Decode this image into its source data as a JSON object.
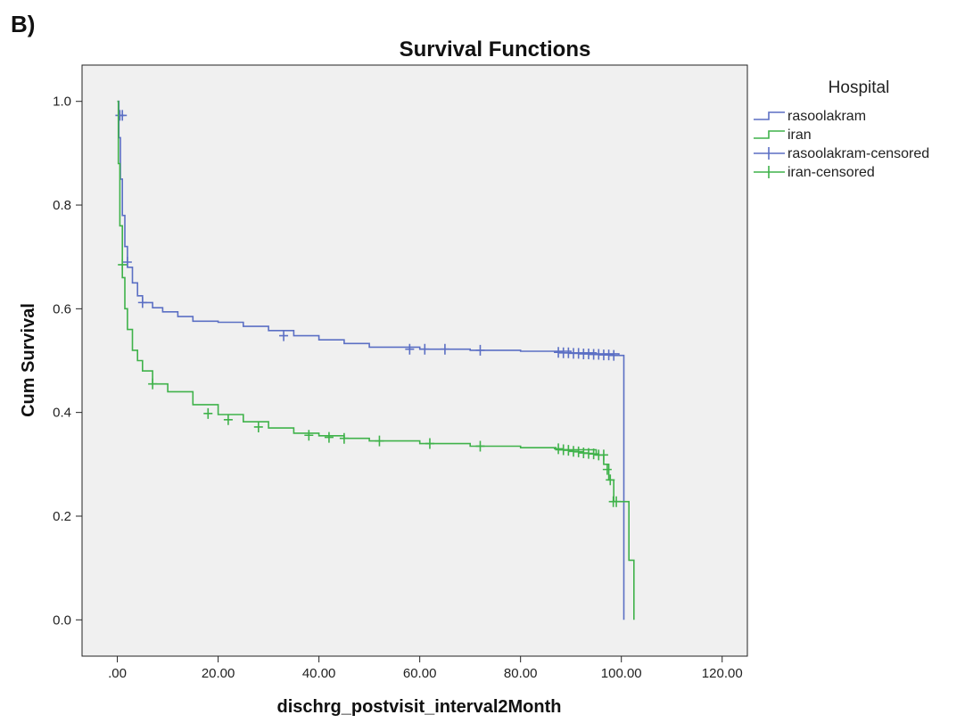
{
  "panel_label": "B)",
  "chart_data": {
    "type": "line",
    "title": "Survival Functions",
    "xlabel": "dischrg_postvisit_interval2Month",
    "ylabel": "Cum Survival",
    "xlim": [
      -7,
      125
    ],
    "ylim": [
      -0.07,
      1.07
    ],
    "xticks": [
      0,
      20,
      40,
      60,
      80,
      100,
      120
    ],
    "xtick_labels": [
      ".00",
      "20.00",
      "40.00",
      "60.00",
      "80.00",
      "100.00",
      "120.00"
    ],
    "yticks": [
      0,
      0.2,
      0.4,
      0.6,
      0.8,
      1.0
    ],
    "ytick_labels": [
      "0.0",
      "0.2",
      "0.4",
      "0.6",
      "0.8",
      "1.0"
    ],
    "grid": false,
    "legend_title": "Hospital",
    "legend_position": "right",
    "legend": [
      {
        "label": "rasoolakram",
        "series": 0,
        "kind": "line"
      },
      {
        "label": "iran",
        "series": 1,
        "kind": "line"
      },
      {
        "label": "rasoolakram-censored",
        "series": 0,
        "kind": "censor"
      },
      {
        "label": "iran-censored",
        "series": 1,
        "kind": "censor"
      }
    ],
    "series": [
      {
        "name": "rasoolakram",
        "color": "#5b6fc4",
        "step": true,
        "x": [
          0,
          0.3,
          0.6,
          1,
          1.5,
          2,
          3,
          4,
          5,
          7,
          9,
          12,
          15,
          20,
          25,
          30,
          35,
          40,
          45,
          50,
          60,
          70,
          80,
          90,
          95,
          99.5,
          100.5
        ],
        "y": [
          1.0,
          0.93,
          0.85,
          0.78,
          0.72,
          0.68,
          0.65,
          0.625,
          0.612,
          0.602,
          0.594,
          0.585,
          0.576,
          0.574,
          0.566,
          0.558,
          0.548,
          0.54,
          0.533,
          0.526,
          0.522,
          0.52,
          0.518,
          0.515,
          0.513,
          0.51,
          0.0
        ],
        "censored_x": [
          0.5,
          1,
          2,
          5,
          33,
          58,
          61,
          65,
          72,
          87.5,
          88.5,
          89.5,
          90.5,
          91.5,
          92.5,
          93.5,
          94.5,
          95.5,
          96.5,
          97.5,
          98.5
        ],
        "censored_y": [
          0.973,
          0.973,
          0.69,
          0.612,
          0.548,
          0.522,
          0.522,
          0.522,
          0.52,
          0.516,
          0.515,
          0.515,
          0.514,
          0.514,
          0.513,
          0.513,
          0.512,
          0.512,
          0.511,
          0.511,
          0.51
        ]
      },
      {
        "name": "iran",
        "color": "#3fb24a",
        "step": true,
        "x": [
          0,
          0.2,
          0.5,
          1,
          1.5,
          2,
          3,
          4,
          5,
          7,
          10,
          15,
          20,
          25,
          30,
          35,
          40,
          45,
          50,
          60,
          70,
          80,
          87,
          95,
          96.5,
          97.5,
          98.5,
          100,
          101.5,
          102.5
        ],
        "y": [
          1.0,
          0.88,
          0.76,
          0.66,
          0.6,
          0.56,
          0.52,
          0.5,
          0.48,
          0.455,
          0.44,
          0.415,
          0.396,
          0.382,
          0.37,
          0.36,
          0.355,
          0.35,
          0.345,
          0.34,
          0.335,
          0.332,
          0.328,
          0.318,
          0.3,
          0.27,
          0.228,
          0.228,
          0.115,
          0.0
        ],
        "censored_x": [
          1,
          7,
          18,
          22,
          28,
          38,
          42,
          45,
          52,
          62,
          72,
          87.5,
          88.5,
          89.5,
          90.5,
          91.5,
          92.5,
          93.5,
          94.5,
          95.5,
          96.5,
          97.2,
          97.8,
          98.4,
          99
        ],
        "censored_y": [
          0.685,
          0.455,
          0.398,
          0.386,
          0.372,
          0.356,
          0.352,
          0.35,
          0.345,
          0.34,
          0.335,
          0.33,
          0.328,
          0.327,
          0.325,
          0.324,
          0.322,
          0.321,
          0.32,
          0.318,
          0.318,
          0.29,
          0.27,
          0.228,
          0.228
        ]
      }
    ]
  }
}
